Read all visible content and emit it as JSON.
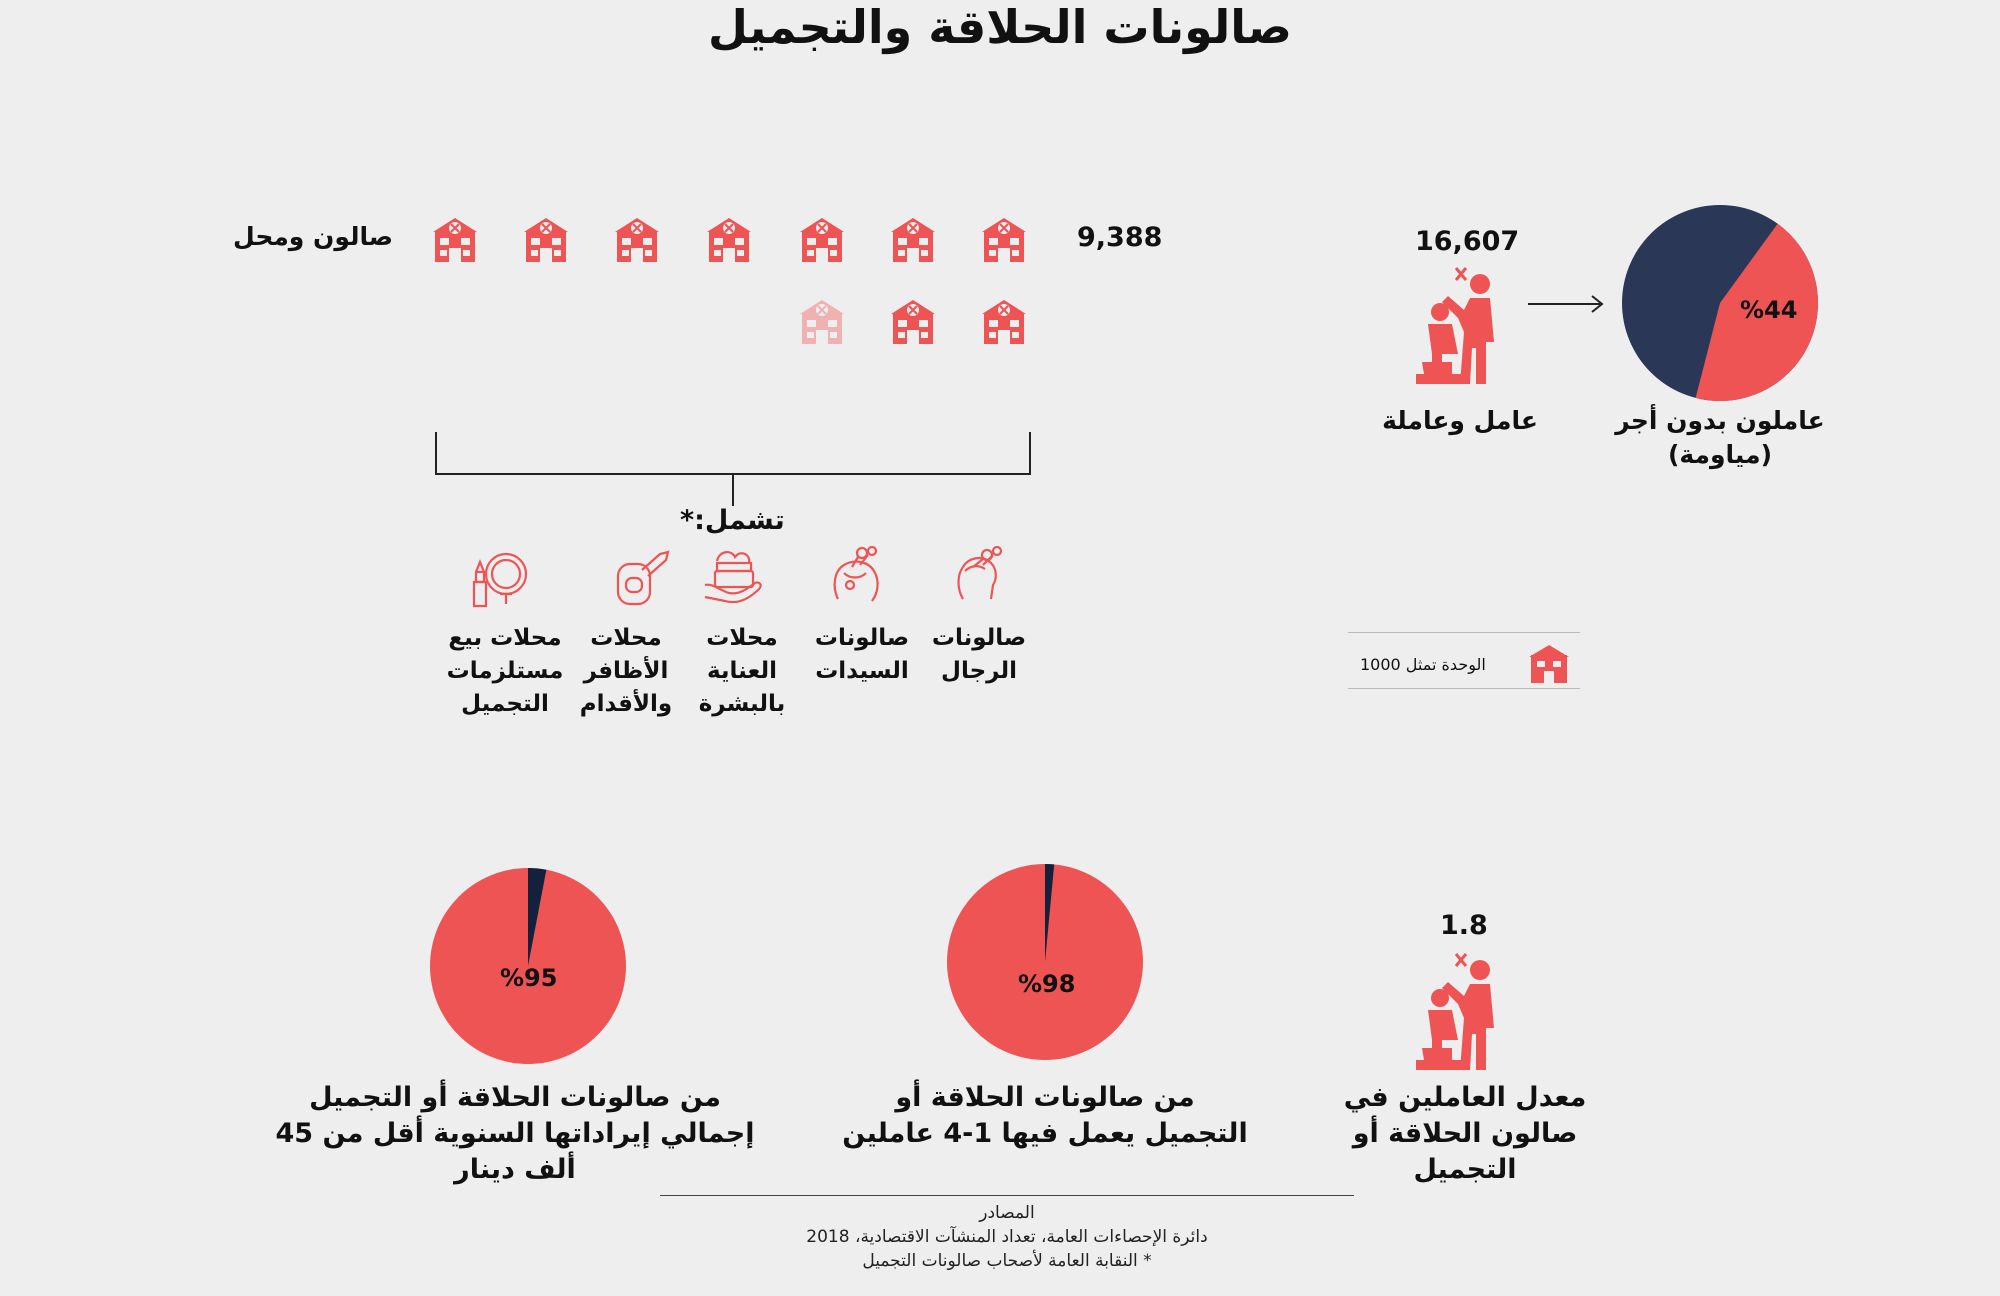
{
  "title": "صالونات الحلاقة والتجميل",
  "colors": {
    "accent": "#ef5455",
    "navy": "#2b3756",
    "background": "#efeeee"
  },
  "salons": {
    "count": "9,388",
    "label": "صالون ومحل",
    "units": 9.388,
    "includes_label": "تشمل:*",
    "categories": [
      {
        "label": "صالونات الرجال",
        "icon": "man-haircut-icon"
      },
      {
        "label": "صالونات السيدات",
        "icon": "woman-hair-icon"
      },
      {
        "label": "محلات العناية بالبشرة",
        "icon": "skin-care-cream-icon"
      },
      {
        "label": "محلات الأظافر والأقدام",
        "icon": "nail-polish-icon"
      },
      {
        "label": "محلات بيع مستلزمات التجميل",
        "icon": "cosmetics-mirror-lipstick-icon"
      }
    ]
  },
  "legend": {
    "text": "الوحدة تمثل 1000",
    "icon": "salon-building-icon"
  },
  "workers": {
    "count": "16,607",
    "label": "عامل وعاملة",
    "icon": "barber-with-customer-icon",
    "unpaid_percent": 44,
    "unpaid_percent_label": "%44",
    "unpaid_label": "عاملون بدون أجر (مياومة)"
  },
  "bottom": {
    "avg": {
      "value": "1.8",
      "label": "معدل العاملين في صالون الحلاقة أو التجميل",
      "icon": "barber-with-customer-icon"
    },
    "small_workforce": {
      "percent": 98,
      "percent_label": "%98",
      "label": "من صالونات الحلاقة أو التجميل يعمل فيها 1-4 عاملين"
    },
    "revenue": {
      "percent": 95,
      "percent_label": "%95",
      "label": "من صالونات الحلاقة أو التجميل إجمالي إيراداتها السنوية أقل من 45 ألف دينار"
    }
  },
  "sources": {
    "heading": "المصادر",
    "line1": "دائرة الإحصاءات العامة، تعداد المنشآت الاقتصادية، 2018",
    "line2": "* النقابة العامة لأصحاب صالونات التجميل"
  }
}
